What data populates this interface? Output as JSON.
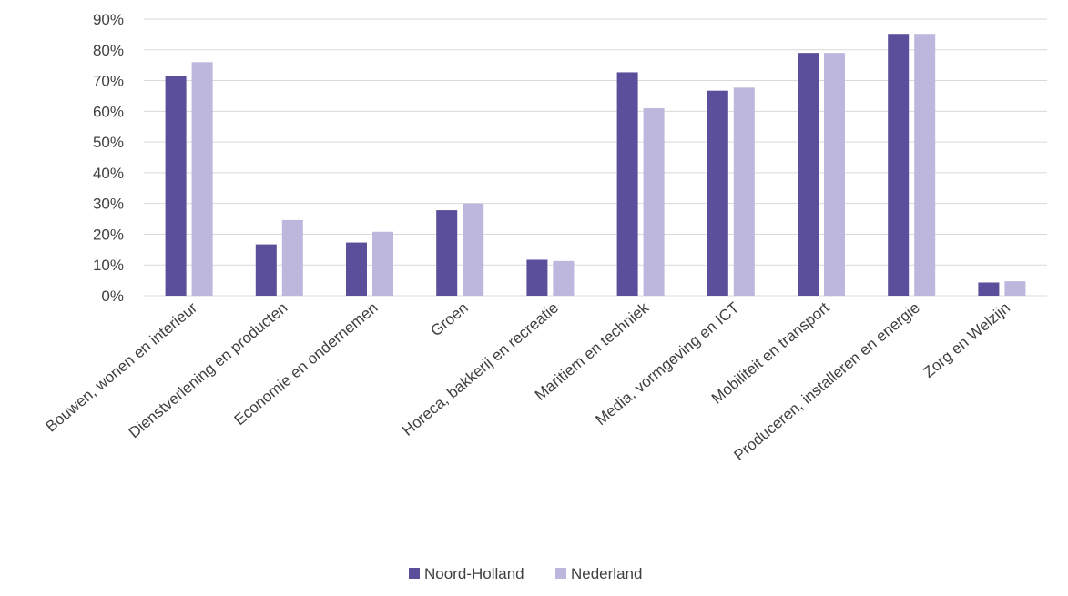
{
  "chart_data": {
    "type": "bar",
    "title": "",
    "xlabel": "",
    "ylabel": "",
    "ylim": [
      0,
      0.9
    ],
    "y_ticks": [
      "0%",
      "10%",
      "20%",
      "30%",
      "40%",
      "50%",
      "60%",
      "70%",
      "80%",
      "90%"
    ],
    "grid": "horizontal",
    "legend_position": "bottom",
    "categories": [
      "Bouwen, wonen en interieur",
      "Dienstverlening en producten",
      "Economie en ondernemen",
      "Groen",
      "Horeca, bakkerij en recreatie",
      "Maritiem en techniek",
      "Media, vormgeving en ICT",
      "Mobiliteit en transport",
      "Produceren, installeren en energie",
      "Zorg en Welzijn"
    ],
    "series": [
      {
        "name": "Noord-Holland",
        "color": "#5b4e9b",
        "values": [
          0.715,
          0.167,
          0.173,
          0.278,
          0.117,
          0.727,
          0.667,
          0.79,
          0.852,
          0.043
        ]
      },
      {
        "name": "Nederland",
        "color": "#bdb6dd",
        "values": [
          0.76,
          0.246,
          0.208,
          0.3,
          0.113,
          0.61,
          0.677,
          0.79,
          0.852,
          0.047
        ]
      }
    ]
  }
}
